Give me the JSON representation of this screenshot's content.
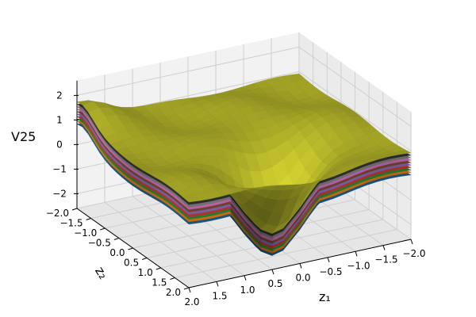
{
  "chart_data": {
    "type": "surface3d",
    "title": "",
    "xlabel": "z₁",
    "ylabel": "z₂",
    "zlabel": "V25",
    "xlim": [
      -2.0,
      2.0
    ],
    "ylim": [
      -2.0,
      2.0
    ],
    "zlim": [
      -2.6,
      2.6
    ],
    "x_ticks": [
      "2.0",
      "1.5",
      "1.0",
      "0.5",
      "0.0",
      "−0.5",
      "−1.0",
      "−1.5",
      "−2.0"
    ],
    "y_ticks": [
      "−2.0",
      "−1.5",
      "−1.0",
      "−0.5",
      "0.0",
      "0.5",
      "1.0",
      "1.5",
      "2.0"
    ],
    "z_ticks": [
      "2",
      "1",
      "0",
      "−1",
      "−2"
    ],
    "x_tick_values": [
      2.0,
      1.5,
      1.0,
      0.5,
      0.0,
      -0.5,
      -1.0,
      -1.5,
      -2.0
    ],
    "y_tick_values": [
      -2.0,
      -1.5,
      -1.0,
      -0.5,
      0.0,
      0.5,
      1.0,
      1.5,
      2.0
    ],
    "z_tick_values": [
      2,
      1,
      0,
      -1,
      -2
    ],
    "grid": true,
    "layer_offsets": [
      -0.9,
      -0.8,
      -0.7,
      -0.6,
      -0.5,
      -0.4,
      -0.3,
      -0.2,
      -0.1,
      0.0
    ],
    "layer_colors": [
      "#1f5f8b",
      "#e07b1a",
      "#2e8b2e",
      "#c23b3b",
      "#8a6bb0",
      "#7a4a3a",
      "#d36fb8",
      "#7f7f7f",
      "#333333",
      "#b5b52a"
    ],
    "surface_grid_n": 20,
    "surface_peak": 1.6,
    "surface_valley": -2.3
  }
}
